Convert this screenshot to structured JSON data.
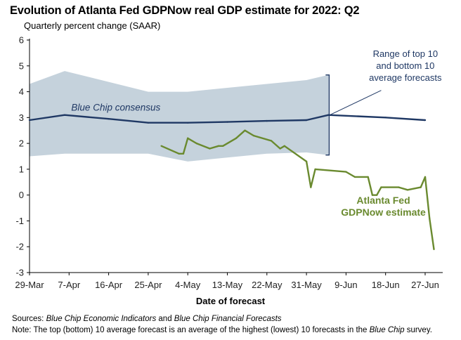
{
  "title": "Evolution of Atlanta Fed GDPNow real GDP estimate for 2022: Q2",
  "subtitle": "Quarterly percent change (SAAR)",
  "footer": {
    "sources_label": "Sources:",
    "sources_part1": "Blue Chip Economic Indicators",
    "sources_and": " and ",
    "sources_part2": "Blue Chip Financial Forecasts",
    "note_label": "Note:",
    "note_text": " The top (bottom) 10 average forecast is an average of the highest (lowest) 10 forecasts in the ",
    "note_italic": "Blue Chip",
    "note_end": " survey."
  },
  "colors": {
    "gdpnow": "#6a8a2f",
    "bluechip": "#1f3864",
    "range_fill": "#c5d2dc",
    "axis": "#000000"
  },
  "chart_data": {
    "type": "line",
    "xlabel": "Date of forecast",
    "ylabel": "",
    "x_tick_labels": [
      "29-Mar",
      "7-Apr",
      "16-Apr",
      "25-Apr",
      "4-May",
      "13-May",
      "22-May",
      "31-May",
      "9-Jun",
      "18-Jun",
      "27-Jun"
    ],
    "x_tick_days": [
      0,
      9,
      18,
      27,
      36,
      45,
      54,
      63,
      72,
      81,
      90
    ],
    "xlim_days": [
      0,
      94
    ],
    "ylim": [
      -3,
      6
    ],
    "y_ticks": [
      -3,
      -2,
      -1,
      0,
      1,
      2,
      3,
      4,
      5,
      6
    ],
    "grid": false,
    "range_band": {
      "name": "Range of top 10 and bottom 10 average forecasts",
      "label_lines": [
        "Range of top 10",
        "and bottom 10",
        "average forecasts"
      ],
      "x_days": [
        0,
        8,
        27,
        36,
        45,
        54,
        63,
        68
      ],
      "upper": [
        4.3,
        4.8,
        4.0,
        4.0,
        4.15,
        4.3,
        4.45,
        4.65
      ],
      "lower": [
        1.5,
        1.6,
        1.6,
        1.3,
        1.45,
        1.6,
        1.65,
        1.55
      ]
    },
    "series": [
      {
        "name": "Blue Chip consensus",
        "x_days": [
          0,
          8,
          18,
          27,
          36,
          45,
          54,
          63,
          68,
          81,
          90
        ],
        "values": [
          2.9,
          3.1,
          2.95,
          2.8,
          2.8,
          2.83,
          2.87,
          2.9,
          3.1,
          3.0,
          2.9
        ]
      },
      {
        "name": "Atlanta Fed GDPNow estimate",
        "label_lines": [
          "Atlanta Fed",
          "GDPNow estimate"
        ],
        "x_days": [
          30,
          34,
          35,
          36,
          38,
          41,
          43,
          44,
          47,
          49,
          51,
          55,
          57,
          58,
          63,
          64,
          65,
          72,
          74,
          77,
          78,
          79,
          80,
          84,
          86,
          89,
          90,
          91,
          92
        ],
        "values": [
          1.9,
          1.6,
          1.6,
          2.2,
          2.0,
          1.8,
          1.9,
          1.9,
          2.2,
          2.5,
          2.3,
          2.1,
          1.8,
          1.9,
          1.3,
          0.3,
          1.0,
          0.9,
          0.7,
          0.7,
          0.0,
          0.0,
          0.3,
          0.3,
          0.2,
          0.3,
          0.7,
          -0.9,
          -2.1
        ]
      }
    ]
  }
}
